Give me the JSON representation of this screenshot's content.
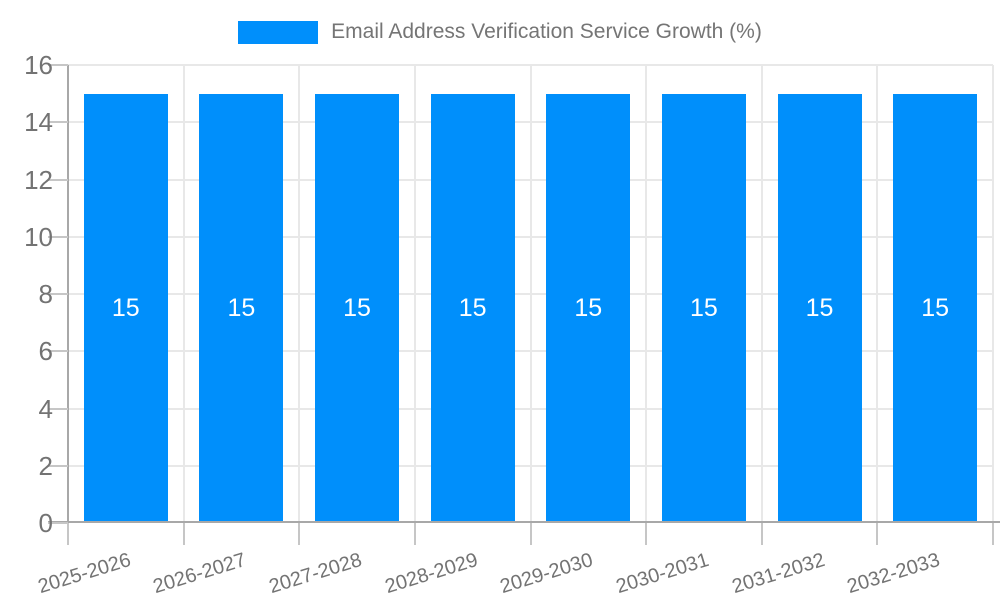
{
  "chart_data": {
    "type": "bar",
    "title": "Email Address Verification Service Growth (%)",
    "legend": {
      "label": "Email Address Verification Service Growth (%)",
      "position": "top"
    },
    "categories": [
      "2025-2026",
      "2026-2027",
      "2027-2028",
      "2028-2029",
      "2029-2030",
      "2030-2031",
      "2031-2032",
      "2032-2033"
    ],
    "values": [
      15,
      15,
      15,
      15,
      15,
      15,
      15,
      15
    ],
    "bar_value_labels": [
      "15",
      "15",
      "15",
      "15",
      "15",
      "15",
      "15",
      "15"
    ],
    "xlabel": "",
    "ylabel": "",
    "ylim": [
      0,
      16
    ],
    "yticks": [
      0,
      2,
      4,
      6,
      8,
      10,
      12,
      14,
      16
    ],
    "grid": true,
    "colors": {
      "bar": "#008ffb",
      "bar_value_label": "#ffffff",
      "gridline": "#e8e8e8",
      "axis_line": "#a8a8a8",
      "tick_mark": "#c6c6c6",
      "axis_text": "#737373",
      "legend_text": "#757575",
      "background": "#ffffff"
    }
  }
}
